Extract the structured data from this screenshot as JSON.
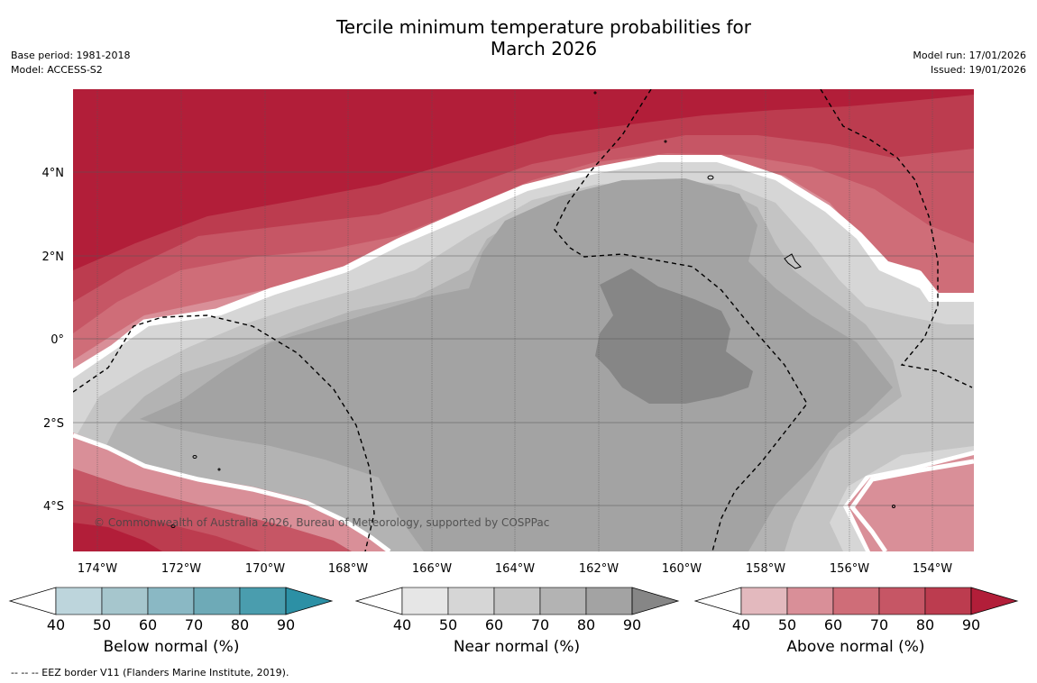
{
  "title": {
    "line1": "Tercile minimum temperature probabilities for",
    "line2": "March 2026"
  },
  "meta_left": {
    "base_period": "Base period: 1981-2018",
    "model": "Model: ACCESS-S2"
  },
  "meta_right": {
    "model_run": "Model run: 17/01/2026",
    "issued": "Issued: 19/01/2026"
  },
  "map": {
    "lat_labels": [
      "4°N",
      "2°N",
      "0°",
      "2°S",
      "4°S"
    ],
    "lon_labels": [
      "174°W",
      "172°W",
      "170°W",
      "168°W",
      "166°W",
      "164°W",
      "162°W",
      "160°W",
      "158°W",
      "156°W",
      "154°W"
    ],
    "copyright": "© Commonwealth of Australia 2026, Bureau of Meteorology, supported by COSPPac",
    "colors": {
      "above": [
        "#e3b9be",
        "#d98f98",
        "#cf6d78",
        "#c65665",
        "#bc3c4f",
        "#b21e39"
      ],
      "near": [
        "#e6e6e6",
        "#d6d6d6",
        "#c4c4c4",
        "#b3b3b3",
        "#a3a3a3",
        "#868686"
      ],
      "below": [
        "#bdd5dc",
        "#a6c6cd",
        "#8ab8c4",
        "#6eaab7",
        "#4a9dae",
        "#2c90a5"
      ]
    }
  },
  "colorbars": [
    {
      "name": "below",
      "label": "Below normal (%)",
      "ticks": [
        "40",
        "50",
        "60",
        "70",
        "80",
        "90"
      ],
      "colors": [
        "#bdd5dc",
        "#a6c6cd",
        "#8ab8c4",
        "#6eaab7",
        "#4a9dae",
        "#2c90a5"
      ]
    },
    {
      "name": "near",
      "label": "Near normal (%)",
      "ticks": [
        "40",
        "50",
        "60",
        "70",
        "80",
        "90"
      ],
      "colors": [
        "#e6e6e6",
        "#d6d6d6",
        "#c4c4c4",
        "#b3b3b3",
        "#a3a3a3",
        "#868686"
      ]
    },
    {
      "name": "above",
      "label": "Above normal (%)",
      "ticks": [
        "40",
        "50",
        "60",
        "70",
        "80",
        "90"
      ],
      "colors": [
        "#e3b9be",
        "#d98f98",
        "#cf6d78",
        "#c65665",
        "#bc3c4f",
        "#b21e39"
      ]
    }
  ],
  "footnote": "--  --  -- EEZ border V11 (Flanders Marine Institute, 2019)."
}
